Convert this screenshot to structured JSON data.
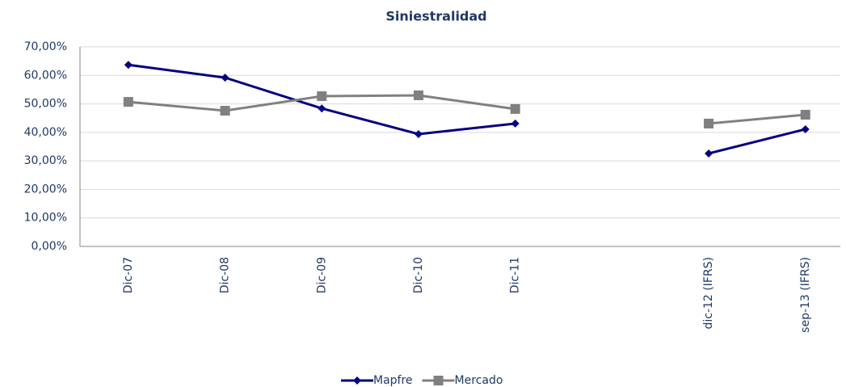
{
  "chart_data": {
    "type": "line",
    "title": "Siniestralidad",
    "categories": [
      "Dic-07",
      "Dic-08",
      "Dic-09",
      "Dic-10",
      "Dic-11",
      null,
      "dic-12 (IFRS)",
      "sep-13 (IFRS)"
    ],
    "series": [
      {
        "name": "Mapfre",
        "color": "#000080",
        "marker": "diamond",
        "values": [
          63.7,
          59.2,
          48.4,
          39.4,
          43.1,
          null,
          32.6,
          41.1
        ]
      },
      {
        "name": "Mercado",
        "color": "#808080",
        "marker": "square",
        "values": [
          50.7,
          47.6,
          52.7,
          53.0,
          48.2,
          null,
          43.1,
          46.2
        ]
      }
    ],
    "ylim": [
      0,
      70
    ],
    "yticks": [
      {
        "value": 0,
        "label": "0,00%"
      },
      {
        "value": 10,
        "label": "10,00%"
      },
      {
        "value": 20,
        "label": "20,00%"
      },
      {
        "value": 30,
        "label": "30,00%"
      },
      {
        "value": 40,
        "label": "40,00%"
      },
      {
        "value": 50,
        "label": "50,00%"
      },
      {
        "value": 60,
        "label": "60,00%"
      },
      {
        "value": 70,
        "label": "70,00%"
      }
    ],
    "grid": true,
    "legend": "bottom"
  }
}
